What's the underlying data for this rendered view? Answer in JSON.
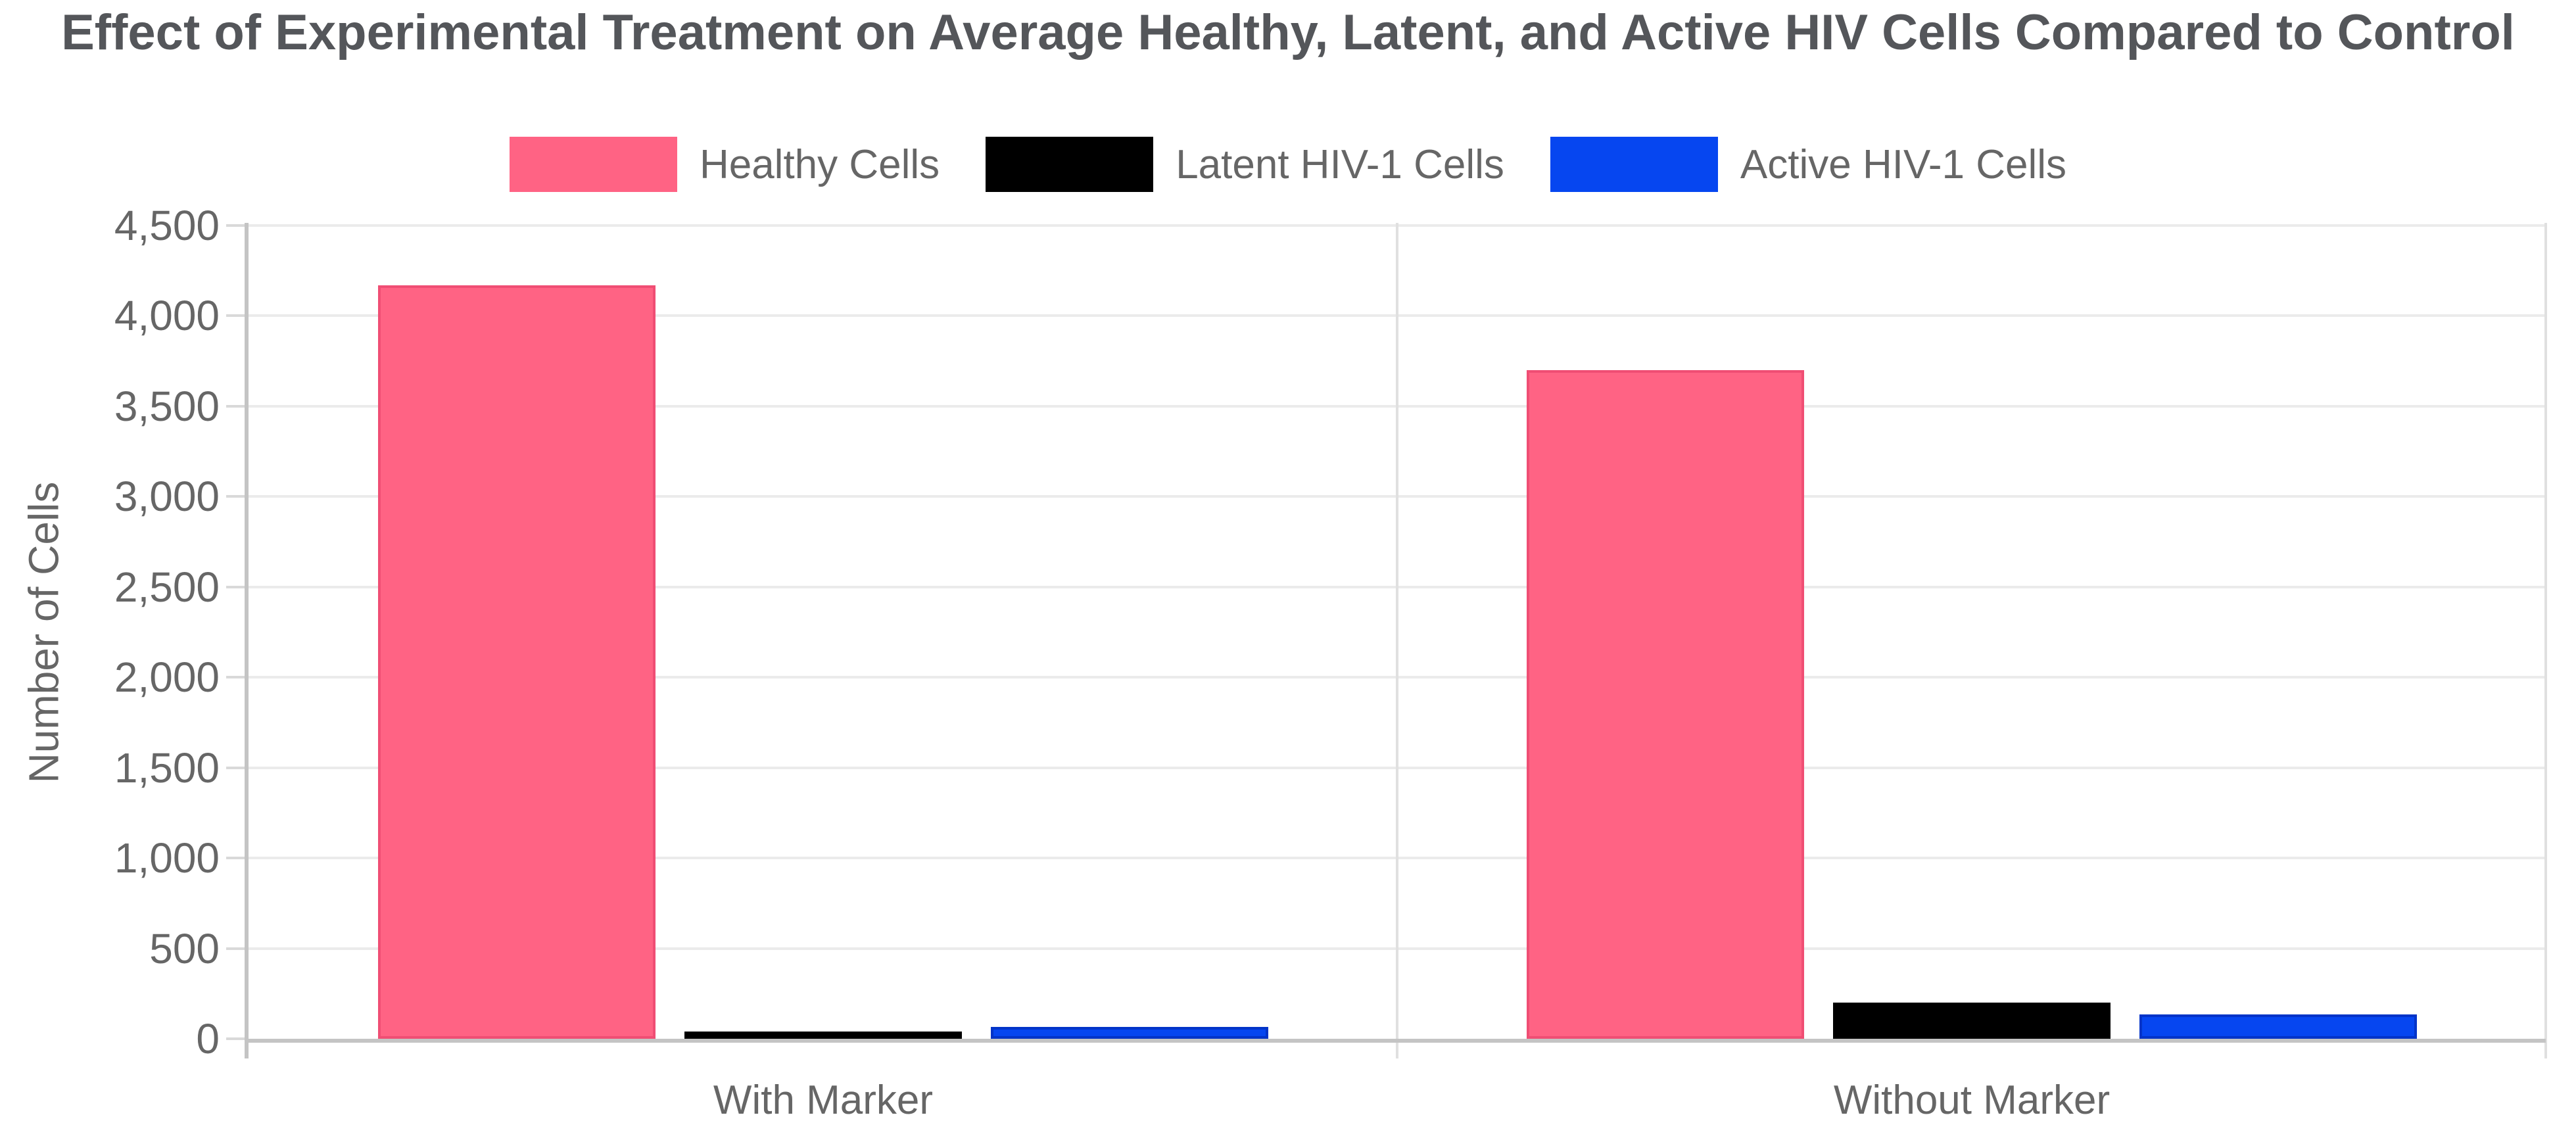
{
  "title": "Effect of Experimental Treatment on Average Healthy, Latent, and Active HIV Cells Compared to Control",
  "chart_data": {
    "type": "bar",
    "title": "Effect of Experimental Treatment on Average Healthy, Latent, and Active HIV Cells Compared to Control",
    "categories": [
      "With Marker",
      "Without Marker"
    ],
    "series": [
      {
        "name": "Healthy Cells",
        "color": "#FF6384",
        "border": "#F04E74",
        "values": [
          4170,
          3700
        ]
      },
      {
        "name": "Latent HIV-1 Cells",
        "color": "#000000",
        "border": "#000000",
        "values": [
          40,
          200
        ]
      },
      {
        "name": "Active HIV-1 Cells",
        "color": "#0646F0",
        "border": "#0334C8",
        "values": [
          65,
          135
        ]
      }
    ],
    "xlabel": "",
    "ylabel": "Number of Cells",
    "ylim": [
      0,
      4500
    ],
    "ytick_step": 500,
    "ytick_labels": [
      "0",
      "500",
      "1,000",
      "1,500",
      "2,000",
      "2,500",
      "3,000",
      "3,500",
      "4,000",
      "4,500"
    ],
    "legend_position": "top",
    "grid": true,
    "tick_format": "thousands-comma"
  },
  "colors": {
    "title_text": "#54565a",
    "tick_text": "#666666",
    "gridline": "#ebebeb",
    "axis_line": "#c4c4c4",
    "category_divider": "#e0e0e0"
  }
}
